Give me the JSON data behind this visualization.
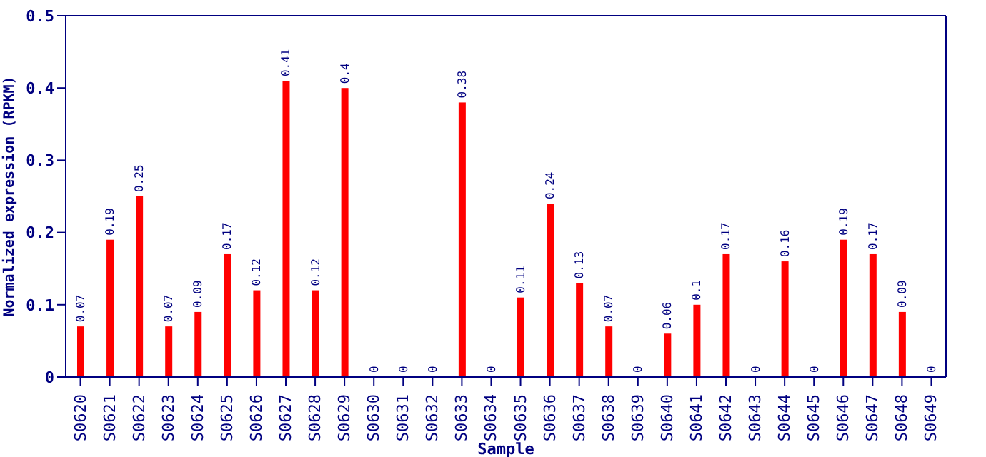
{
  "chart_data": {
    "type": "bar",
    "xlabel": "Sample",
    "ylabel": "Normalized expression (RPKM)",
    "categories": [
      "S0620",
      "S0621",
      "S0622",
      "S0623",
      "S0624",
      "S0625",
      "S0626",
      "S0627",
      "S0628",
      "S0629",
      "S0630",
      "S0631",
      "S0632",
      "S0633",
      "S0634",
      "S0635",
      "S0636",
      "S0637",
      "S0638",
      "S0639",
      "S0640",
      "S0641",
      "S0642",
      "S0643",
      "S0644",
      "S0645",
      "S0646",
      "S0647",
      "S0648",
      "S0649"
    ],
    "values": [
      0.07,
      0.19,
      0.25,
      0.07,
      0.09,
      0.17,
      0.12,
      0.41,
      0.12,
      0.4,
      0,
      0,
      0,
      0.38,
      0,
      0.11,
      0.24,
      0.13,
      0.07,
      0,
      0.06,
      0.1,
      0.17,
      0,
      0.16,
      0,
      0.19,
      0.17,
      0.09,
      0
    ],
    "color": "#ff0000",
    "ylim": [
      0,
      0.5
    ],
    "yticks": [
      0,
      0.1,
      0.2,
      0.3,
      0.4,
      0.5
    ],
    "grid": false,
    "data_labels": true
  }
}
